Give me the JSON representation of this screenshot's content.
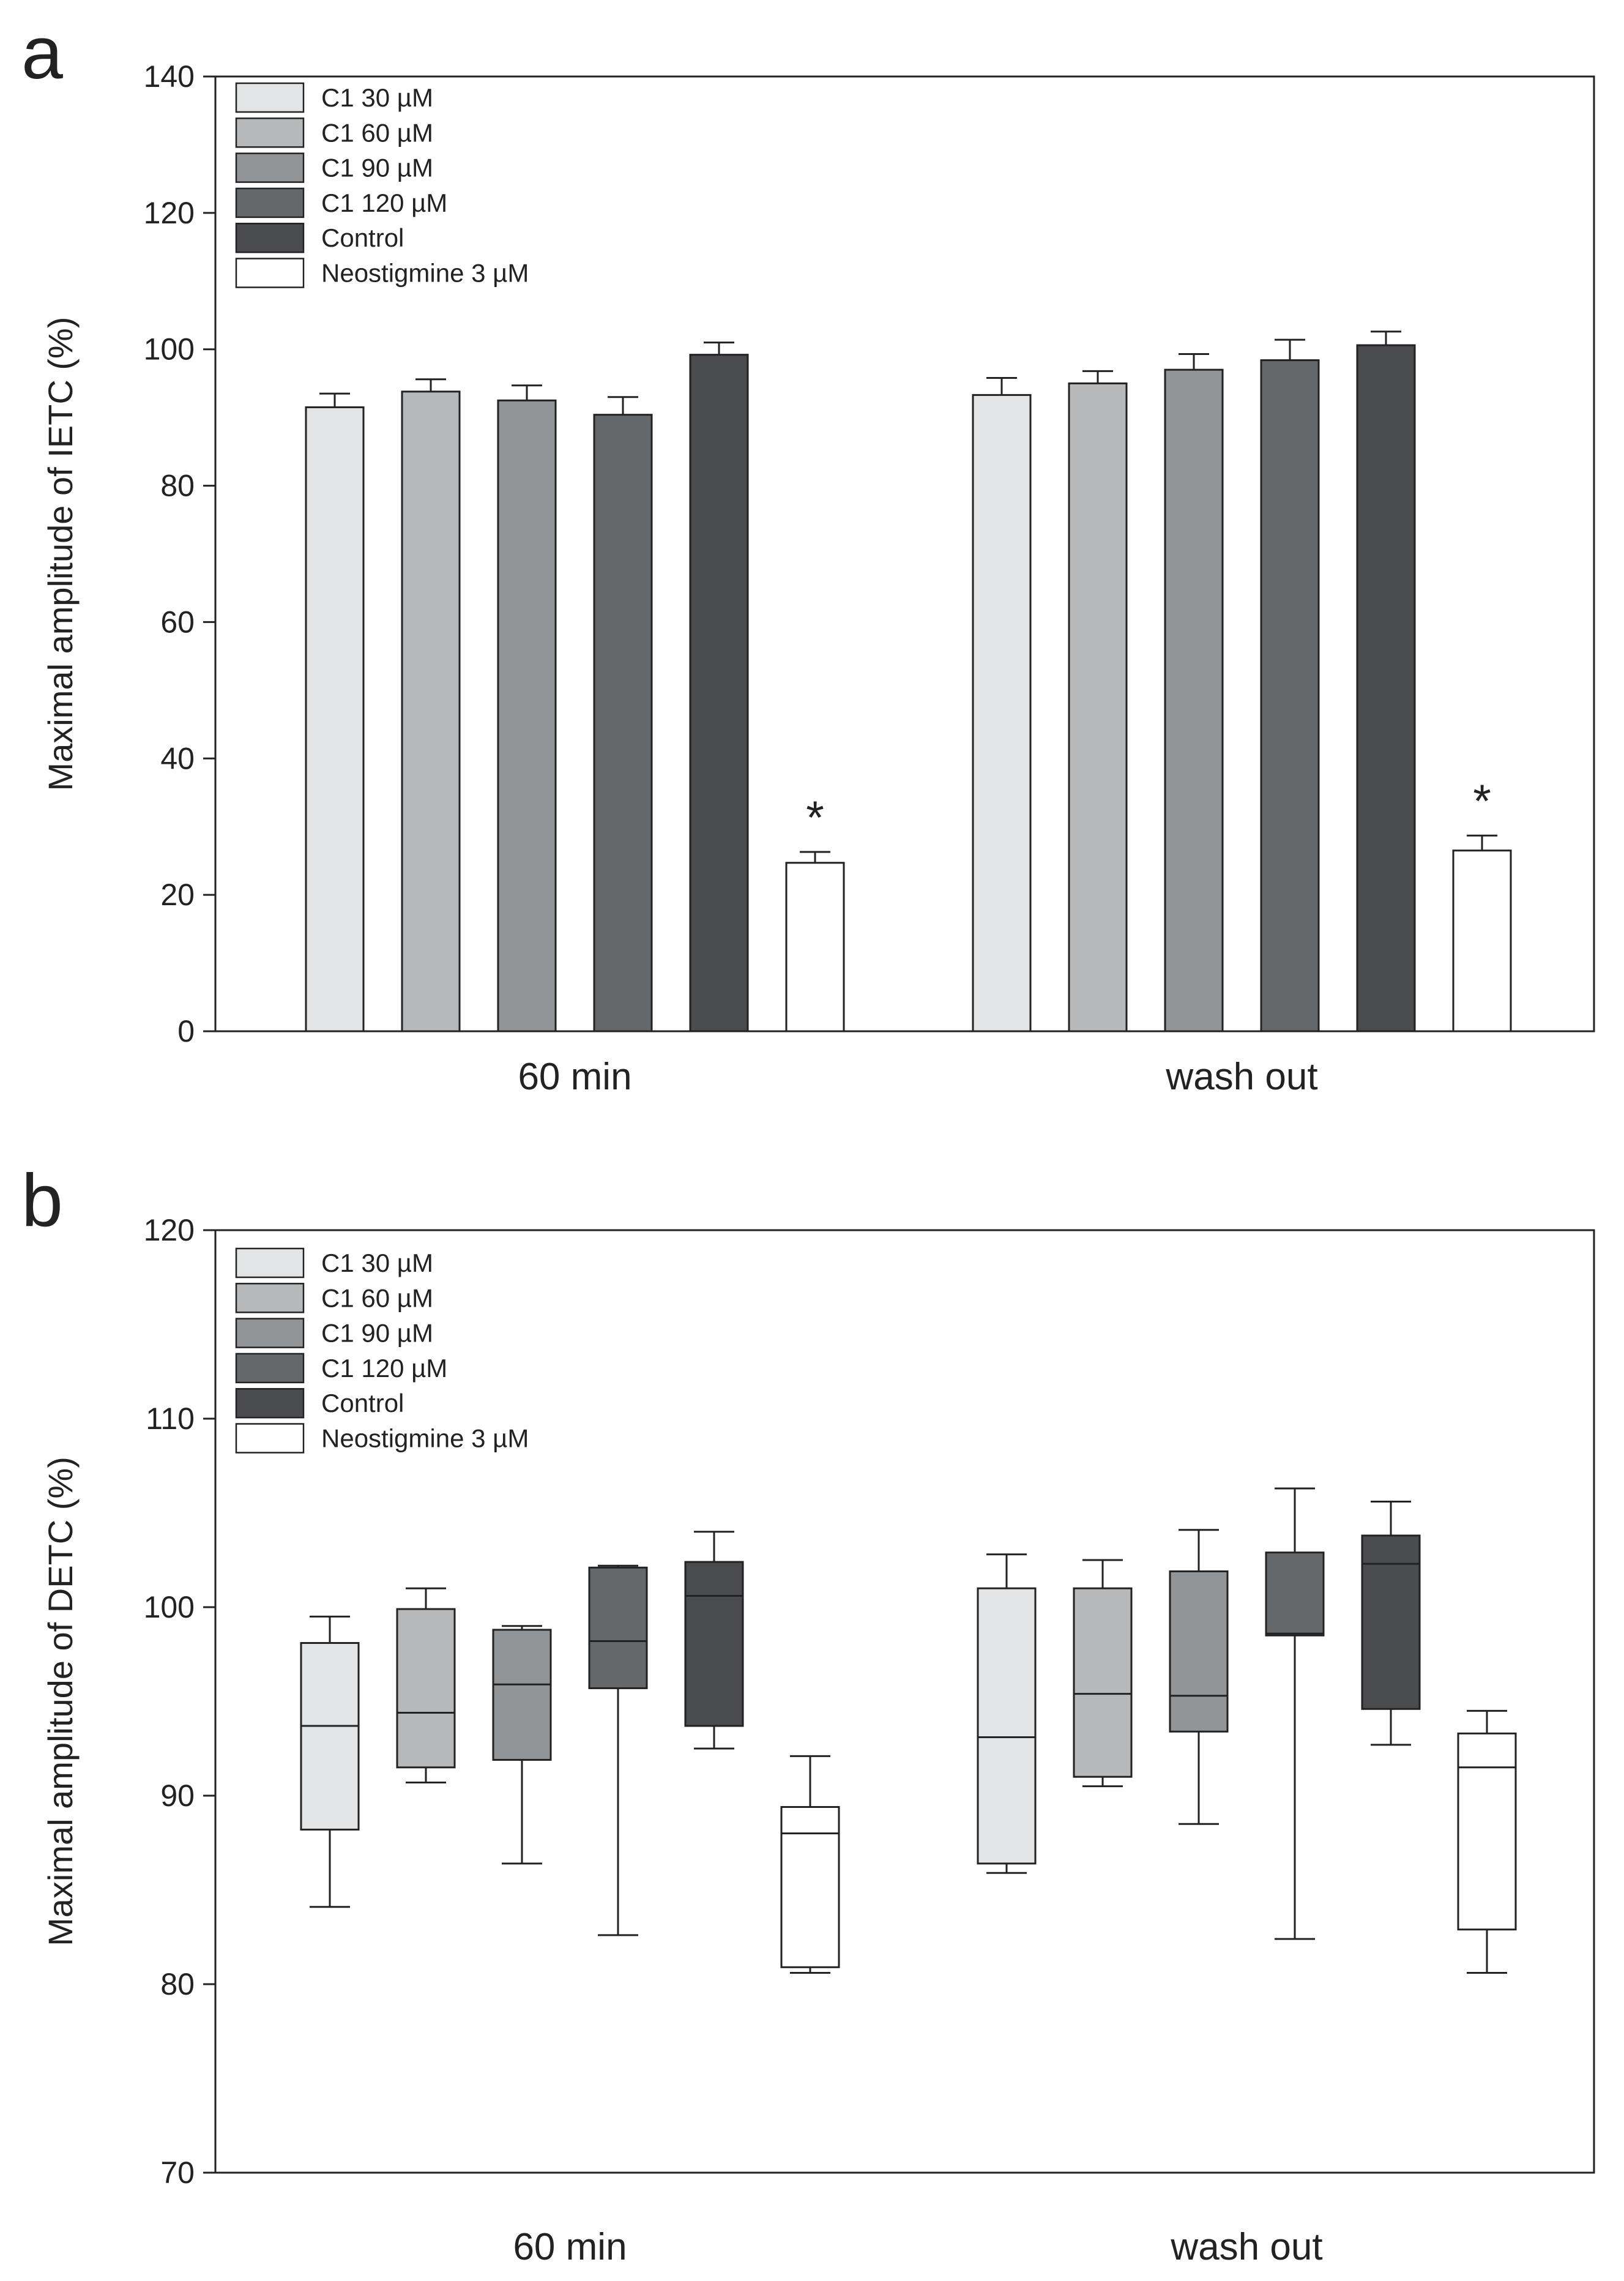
{
  "chart_data": [
    {
      "panel": "a",
      "type": "bar",
      "ylabel": "Maximal amplitude of IETC (%)",
      "ylim": [
        0,
        140
      ],
      "yticks": [
        0,
        20,
        40,
        60,
        80,
        100,
        120,
        140
      ],
      "categories": [
        "60 min",
        "wash out"
      ],
      "legend_position": "top-left",
      "series": [
        {
          "name": "C1 30 µM",
          "color": "#e2e4e5",
          "values": [
            91.5,
            93.3
          ],
          "errors": [
            2.0,
            2.5
          ]
        },
        {
          "name": "C1 60 µM",
          "color": "#b6b8ba",
          "values": [
            93.8,
            95.0
          ],
          "errors": [
            1.8,
            1.8
          ]
        },
        {
          "name": "C1 90 µM",
          "color": "#929597",
          "values": [
            92.5,
            97.0
          ],
          "errors": [
            2.2,
            2.3
          ]
        },
        {
          "name": "C1 120 µM",
          "color": "#65686b",
          "values": [
            90.4,
            98.4
          ],
          "errors": [
            2.6,
            3.0
          ]
        },
        {
          "name": "Control",
          "color": "#4a4b4e",
          "values": [
            99.2,
            100.6
          ],
          "errors": [
            1.8,
            2.0
          ]
        },
        {
          "name": "Neostigmine 3 µM",
          "color": "#ffffff",
          "values": [
            24.7,
            26.5
          ],
          "errors": [
            1.6,
            2.2
          ]
        }
      ],
      "annotations": [
        {
          "text": "*",
          "series": "Neostigmine 3 µM",
          "category": "60 min"
        },
        {
          "text": "*",
          "series": "Neostigmine 3 µM",
          "category": "wash out"
        }
      ]
    },
    {
      "panel": "b",
      "type": "box",
      "ylabel": "Maximal amplitude of DETC (%)",
      "ylim": [
        70,
        120
      ],
      "yticks": [
        70,
        80,
        90,
        100,
        110,
        120
      ],
      "categories": [
        "60 min",
        "wash out"
      ],
      "legend_position": "top-left",
      "series": [
        {
          "name": "C1 30 µM",
          "color": "#e2e4e5",
          "boxes": [
            {
              "min": 84.1,
              "q1": 88.2,
              "median": 93.7,
              "q3": 98.1,
              "max": 99.5
            },
            {
              "min": 85.9,
              "q1": 86.4,
              "median": 93.1,
              "q3": 101.0,
              "max": 102.8
            }
          ]
        },
        {
          "name": "C1 60 µM",
          "color": "#b6b8ba",
          "boxes": [
            {
              "min": 90.7,
              "q1": 91.5,
              "median": 94.4,
              "q3": 99.9,
              "max": 101.0
            },
            {
              "min": 90.5,
              "q1": 91.0,
              "median": 95.4,
              "q3": 101.0,
              "max": 102.5
            }
          ]
        },
        {
          "name": "C1 90 µM",
          "color": "#929597",
          "boxes": [
            {
              "min": 86.4,
              "q1": 91.9,
              "median": 95.9,
              "q3": 98.8,
              "max": 99.0
            },
            {
              "min": 88.5,
              "q1": 93.4,
              "median": 95.3,
              "q3": 101.9,
              "max": 104.1
            }
          ]
        },
        {
          "name": "C1 120 µM",
          "color": "#65686b",
          "boxes": [
            {
              "min": 82.6,
              "q1": 95.7,
              "median": 98.2,
              "q3": 102.1,
              "max": 102.2
            },
            {
              "min": 82.4,
              "q1": 98.5,
              "median": 98.6,
              "q3": 102.9,
              "max": 106.3
            }
          ]
        },
        {
          "name": "Control",
          "color": "#4a4b4e",
          "boxes": [
            {
              "min": 92.5,
              "q1": 93.7,
              "median": 100.6,
              "q3": 102.4,
              "max": 104.0
            },
            {
              "min": 92.7,
              "q1": 94.6,
              "median": 102.3,
              "q3": 103.8,
              "max": 105.6
            }
          ]
        },
        {
          "name": "Neostigmine 3 µM",
          "color": "#ffffff",
          "boxes": [
            {
              "min": 80.6,
              "q1": 80.9,
              "median": 88.0,
              "q3": 89.4,
              "max": 92.1
            },
            {
              "min": 80.6,
              "q1": 82.9,
              "median": 91.5,
              "q3": 93.3,
              "max": 94.5
            }
          ]
        }
      ]
    }
  ]
}
